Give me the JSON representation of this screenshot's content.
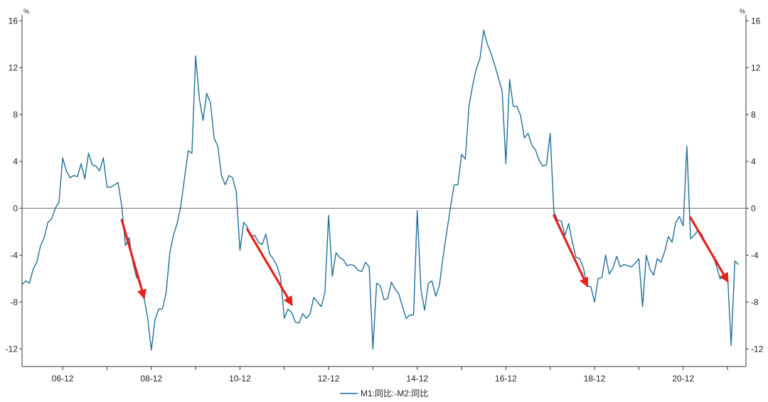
{
  "chart_data": {
    "type": "line",
    "title": "",
    "xlabel": "",
    "ylabel": "",
    "y_unit_left": "%",
    "y_unit_right": "%",
    "ylim": [
      -13.5,
      16.5
    ],
    "yticks": [
      16,
      12,
      8,
      4,
      0,
      -4,
      -8,
      -12
    ],
    "xlim": [
      "2006-01",
      "2022-05"
    ],
    "xtick_labels": [
      "06-12",
      "08-12",
      "10-12",
      "12-12",
      "14-12",
      "16-12",
      "18-12",
      "20-12"
    ],
    "xtick_dates": [
      "2006-12",
      "2008-12",
      "2010-12",
      "2012-12",
      "2014-12",
      "2016-12",
      "2018-12",
      "2020-12"
    ],
    "grid": false,
    "zero_line": true,
    "legend_position": "bottom-center",
    "colors": {
      "series": "#1f6f9a",
      "zero_line": "#666666",
      "axis": "#333333",
      "arrow": "#e8201a"
    },
    "series": [
      {
        "name": "M1:同比:-M2:同比",
        "points": [
          [
            "2006-01",
            -6.5
          ],
          [
            "2006-02",
            -6.2
          ],
          [
            "2006-03",
            -6.4
          ],
          [
            "2006-04",
            -5.2
          ],
          [
            "2006-05",
            -4.6
          ],
          [
            "2006-06",
            -3.2
          ],
          [
            "2006-07",
            -2.5
          ],
          [
            "2006-08",
            -1.2
          ],
          [
            "2006-09",
            -0.9
          ],
          [
            "2006-10",
            0.0
          ],
          [
            "2006-11",
            0.5
          ],
          [
            "2006-12",
            4.3
          ],
          [
            "2007-01",
            3.2
          ],
          [
            "2007-02",
            2.6
          ],
          [
            "2007-03",
            2.8
          ],
          [
            "2007-04",
            2.7
          ],
          [
            "2007-05",
            3.8
          ],
          [
            "2007-06",
            2.5
          ],
          [
            "2007-07",
            4.7
          ],
          [
            "2007-08",
            3.7
          ],
          [
            "2007-09",
            3.6
          ],
          [
            "2007-10",
            3.2
          ],
          [
            "2007-11",
            4.3
          ],
          [
            "2007-12",
            1.8
          ],
          [
            "2008-01",
            1.8
          ],
          [
            "2008-02",
            2.0
          ],
          [
            "2008-03",
            2.2
          ],
          [
            "2008-04",
            0.2
          ],
          [
            "2008-05",
            -3.2
          ],
          [
            "2008-06",
            -2.5
          ],
          [
            "2008-07",
            -4.6
          ],
          [
            "2008-08",
            -5.9
          ],
          [
            "2008-09",
            -6.2
          ],
          [
            "2008-10",
            -7.6
          ],
          [
            "2008-11",
            -9.3
          ],
          [
            "2008-12",
            -12.1
          ],
          [
            "2009-01",
            -9.5
          ],
          [
            "2009-02",
            -8.6
          ],
          [
            "2009-03",
            -8.6
          ],
          [
            "2009-04",
            -7.2
          ],
          [
            "2009-05",
            -3.8
          ],
          [
            "2009-06",
            -2.3
          ],
          [
            "2009-07",
            -1.3
          ],
          [
            "2009-08",
            0.2
          ],
          [
            "2009-09",
            2.6
          ],
          [
            "2009-10",
            4.9
          ],
          [
            "2009-11",
            4.7
          ],
          [
            "2009-12",
            13.0
          ],
          [
            "2010-01",
            9.4
          ],
          [
            "2010-02",
            7.5
          ],
          [
            "2010-03",
            9.8
          ],
          [
            "2010-04",
            9.0
          ],
          [
            "2010-05",
            6.0
          ],
          [
            "2010-06",
            5.3
          ],
          [
            "2010-07",
            2.8
          ],
          [
            "2010-08",
            2.0
          ],
          [
            "2010-09",
            2.8
          ],
          [
            "2010-10",
            2.6
          ],
          [
            "2010-11",
            1.4
          ],
          [
            "2010-12",
            -3.6
          ],
          [
            "2011-01",
            -1.2
          ],
          [
            "2011-02",
            -1.6
          ],
          [
            "2011-03",
            -2.4
          ],
          [
            "2011-04",
            -2.3
          ],
          [
            "2011-05",
            -2.9
          ],
          [
            "2011-06",
            -3.1
          ],
          [
            "2011-07",
            -2.2
          ],
          [
            "2011-08",
            -3.9
          ],
          [
            "2011-09",
            -4.3
          ],
          [
            "2011-10",
            -4.9
          ],
          [
            "2011-11",
            -5.9
          ],
          [
            "2011-12",
            -9.4
          ],
          [
            "2012-01",
            -8.6
          ],
          [
            "2012-02",
            -8.9
          ],
          [
            "2012-03",
            -9.7
          ],
          [
            "2012-04",
            -9.8
          ],
          [
            "2012-05",
            -9.0
          ],
          [
            "2012-06",
            -9.4
          ],
          [
            "2012-07",
            -9.0
          ],
          [
            "2012-08",
            -7.6
          ],
          [
            "2012-09",
            -8.0
          ],
          [
            "2012-10",
            -8.4
          ],
          [
            "2012-11",
            -7.2
          ],
          [
            "2012-12",
            -0.6
          ],
          [
            "2013-01",
            -5.8
          ],
          [
            "2013-02",
            -3.8
          ],
          [
            "2013-03",
            -4.2
          ],
          [
            "2013-04",
            -4.4
          ],
          [
            "2013-05",
            -4.9
          ],
          [
            "2013-06",
            -4.8
          ],
          [
            "2013-07",
            -4.9
          ],
          [
            "2013-08",
            -5.3
          ],
          [
            "2013-09",
            -5.4
          ],
          [
            "2013-10",
            -4.6
          ],
          [
            "2013-11",
            -5.0
          ],
          [
            "2013-12",
            -12.0
          ],
          [
            "2014-01",
            -6.4
          ],
          [
            "2014-02",
            -6.6
          ],
          [
            "2014-03",
            -7.8
          ],
          [
            "2014-04",
            -7.7
          ],
          [
            "2014-05",
            -6.3
          ],
          [
            "2014-06",
            -6.9
          ],
          [
            "2014-07",
            -7.3
          ],
          [
            "2014-08",
            -8.4
          ],
          [
            "2014-09",
            -9.4
          ],
          [
            "2014-10",
            -9.1
          ],
          [
            "2014-11",
            -9.1
          ],
          [
            "2014-12",
            -0.2
          ],
          [
            "2015-01",
            -6.9
          ],
          [
            "2015-02",
            -8.7
          ],
          [
            "2015-03",
            -6.4
          ],
          [
            "2015-04",
            -6.2
          ],
          [
            "2015-05",
            -7.5
          ],
          [
            "2015-06",
            -6.6
          ],
          [
            "2015-07",
            -4.1
          ],
          [
            "2015-08",
            -2.0
          ],
          [
            "2015-09",
            0.1
          ],
          [
            "2015-10",
            2.0
          ],
          [
            "2015-11",
            2.0
          ],
          [
            "2015-12",
            4.6
          ],
          [
            "2016-01",
            4.2
          ],
          [
            "2016-02",
            8.7
          ],
          [
            "2016-03",
            10.5
          ],
          [
            "2016-04",
            11.9
          ],
          [
            "2016-05",
            12.8
          ],
          [
            "2016-06",
            15.2
          ],
          [
            "2016-07",
            14.0
          ],
          [
            "2016-08",
            13.2
          ],
          [
            "2016-09",
            12.2
          ],
          [
            "2016-10",
            11.1
          ],
          [
            "2016-11",
            10.0
          ],
          [
            "2016-12",
            3.8
          ],
          [
            "2017-01",
            11.0
          ],
          [
            "2017-02",
            8.7
          ],
          [
            "2017-03",
            8.7
          ],
          [
            "2017-04",
            7.9
          ],
          [
            "2017-05",
            6.0
          ],
          [
            "2017-06",
            6.4
          ],
          [
            "2017-07",
            5.4
          ],
          [
            "2017-08",
            5.0
          ],
          [
            "2017-09",
            4.1
          ],
          [
            "2017-10",
            3.6
          ],
          [
            "2017-11",
            3.7
          ],
          [
            "2017-12",
            6.4
          ],
          [
            "2018-01",
            -0.3
          ],
          [
            "2018-02",
            -1.0
          ],
          [
            "2018-03",
            -1.1
          ],
          [
            "2018-04",
            -2.3
          ],
          [
            "2018-05",
            -1.3
          ],
          [
            "2018-06",
            -2.9
          ],
          [
            "2018-07",
            -4.2
          ],
          [
            "2018-08",
            -4.3
          ],
          [
            "2018-09",
            -5.1
          ],
          [
            "2018-10",
            -6.6
          ],
          [
            "2018-11",
            -6.7
          ],
          [
            "2018-12",
            -8.0
          ],
          [
            "2019-01",
            -6.0
          ],
          [
            "2019-02",
            -5.9
          ],
          [
            "2019-03",
            -4.0
          ],
          [
            "2019-04",
            -5.6
          ],
          [
            "2019-05",
            -5.1
          ],
          [
            "2019-06",
            -4.1
          ],
          [
            "2019-07",
            -5.0
          ],
          [
            "2019-08",
            -4.8
          ],
          [
            "2019-09",
            -4.9
          ],
          [
            "2019-10",
            -5.0
          ],
          [
            "2019-11",
            -4.7
          ],
          [
            "2019-12",
            -4.3
          ],
          [
            "2020-01",
            -8.4
          ],
          [
            "2020-02",
            -4.0
          ],
          [
            "2020-03",
            -5.2
          ],
          [
            "2020-04",
            -5.7
          ],
          [
            "2020-05",
            -4.3
          ],
          [
            "2020-06",
            -4.6
          ],
          [
            "2020-07",
            -3.7
          ],
          [
            "2020-08",
            -2.4
          ],
          [
            "2020-09",
            -2.9
          ],
          [
            "2020-10",
            -1.2
          ],
          [
            "2020-11",
            -0.7
          ],
          [
            "2020-12",
            -1.5
          ],
          [
            "2021-01",
            5.3
          ],
          [
            "2021-02",
            -2.6
          ],
          [
            "2021-03",
            -2.3
          ],
          [
            "2021-04",
            -1.9
          ],
          [
            "2021-05",
            -2.2
          ],
          [
            "2021-06",
            -2.9
          ],
          [
            "2021-07",
            -3.4
          ],
          [
            "2021-08",
            -4.0
          ],
          [
            "2021-09",
            -4.9
          ],
          [
            "2021-10",
            -6.0
          ],
          [
            "2021-11",
            -5.9
          ],
          [
            "2021-12",
            -5.5
          ],
          [
            "2022-01",
            -11.7
          ],
          [
            "2022-02",
            -4.5
          ],
          [
            "2022-03",
            -4.8
          ]
        ]
      }
    ],
    "annotations": [
      {
        "type": "arrow",
        "from": [
          "2008-04",
          -1.0
        ],
        "to": [
          "2008-10",
          -7.6
        ]
      },
      {
        "type": "arrow",
        "from": [
          "2011-02",
          -1.8
        ],
        "to": [
          "2012-02",
          -8.2
        ]
      },
      {
        "type": "arrow",
        "from": [
          "2018-01",
          -0.6
        ],
        "to": [
          "2018-10",
          -6.6
        ]
      },
      {
        "type": "arrow",
        "from": [
          "2021-02",
          -0.8
        ],
        "to": [
          "2021-12",
          -6.2
        ]
      }
    ]
  }
}
